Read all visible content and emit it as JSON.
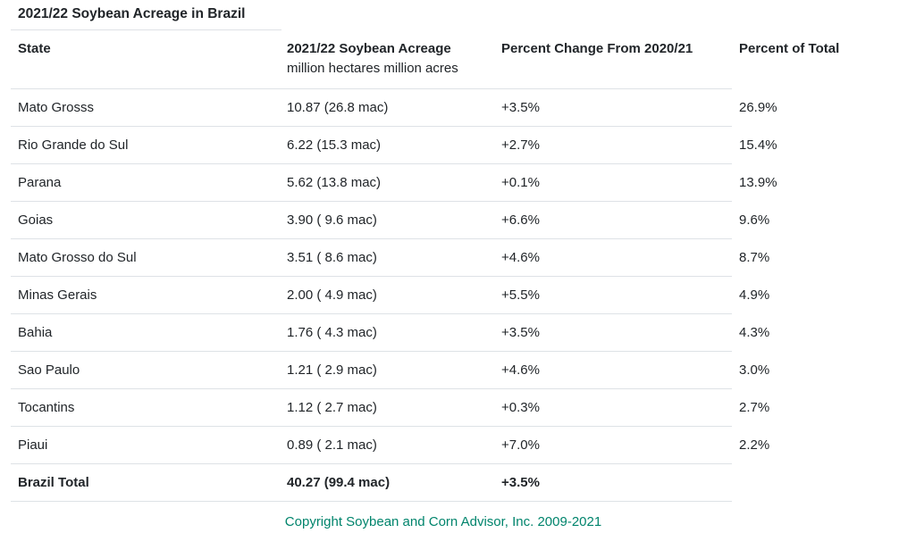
{
  "table": {
    "title": "2021/22 Soybean Acreage in Brazil",
    "header": {
      "state": "State",
      "acreage": "2021/22 Soybean Acreage",
      "acreage_sub": "million hectares million acres",
      "change": "Percent Change From 2020/21",
      "share": "Percent of Total"
    },
    "rows": [
      {
        "state": "Mato Grosss",
        "acreage": "10.87 (26.8 mac)",
        "change": "+3.5%",
        "share": "26.9%"
      },
      {
        "state": "Rio Grande do Sul",
        "acreage": "6.22 (15.3 mac)",
        "change": "+2.7%",
        "share": "15.4%"
      },
      {
        "state": "Parana",
        "acreage": "5.62 (13.8 mac)",
        "change": "+0.1%",
        "share": "13.9%"
      },
      {
        "state": "Goias",
        "acreage": "3.90 ( 9.6 mac)",
        "change": "+6.6%",
        "share": "9.6%"
      },
      {
        "state": "Mato Grosso do Sul",
        "acreage": "3.51 ( 8.6 mac)",
        "change": "+4.6%",
        "share": "8.7%"
      },
      {
        "state": "Minas Gerais",
        "acreage": "2.00 ( 4.9 mac)",
        "change": "+5.5%",
        "share": "4.9%"
      },
      {
        "state": "Bahia",
        "acreage": "1.76 ( 4.3 mac)",
        "change": "+3.5%",
        "share": "4.3%"
      },
      {
        "state": "Sao Paulo",
        "acreage": "1.21 ( 2.9 mac)",
        "change": "+4.6%",
        "share": "3.0%"
      },
      {
        "state": "Tocantins",
        "acreage": "1.12 ( 2.7 mac)",
        "change": "+0.3%",
        "share": "2.7%"
      },
      {
        "state": "Piaui",
        "acreage": "0.89 ( 2.1 mac)",
        "change": "+7.0%",
        "share": "2.2%"
      }
    ],
    "total": {
      "state": "Brazil Total",
      "acreage": "40.27 (99.4 mac)",
      "change": "+3.5%",
      "share": ""
    }
  },
  "footer": {
    "copyright": "Copyright Soybean and Corn Advisor, Inc. 2009-2021"
  },
  "colors": {
    "text": "#212529",
    "border": "#dee2e6",
    "copyright": "#00846c"
  },
  "chart_data": {
    "type": "table",
    "title": "2021/22 Soybean Acreage in Brazil",
    "columns": [
      "State",
      "2021/22 Soybean Acreage (million hectares)",
      "Acreage (million acres)",
      "Percent Change From 2020/21 (%)",
      "Percent of Total (%)"
    ],
    "units_note": "million hectares million acres",
    "rows": [
      [
        "Mato Grosss",
        10.87,
        26.8,
        3.5,
        26.9
      ],
      [
        "Rio Grande do Sul",
        6.22,
        15.3,
        2.7,
        15.4
      ],
      [
        "Parana",
        5.62,
        13.8,
        0.1,
        13.9
      ],
      [
        "Goias",
        3.9,
        9.6,
        6.6,
        9.6
      ],
      [
        "Mato Grosso do Sul",
        3.51,
        8.6,
        4.6,
        8.7
      ],
      [
        "Minas Gerais",
        2.0,
        4.9,
        5.5,
        4.9
      ],
      [
        "Bahia",
        1.76,
        4.3,
        3.5,
        4.3
      ],
      [
        "Sao Paulo",
        1.21,
        2.9,
        4.6,
        3.0
      ],
      [
        "Tocantins",
        1.12,
        2.7,
        0.3,
        2.7
      ],
      [
        "Piaui",
        0.89,
        2.1,
        7.0,
        2.2
      ],
      [
        "Brazil Total",
        40.27,
        99.4,
        3.5,
        null
      ]
    ]
  }
}
